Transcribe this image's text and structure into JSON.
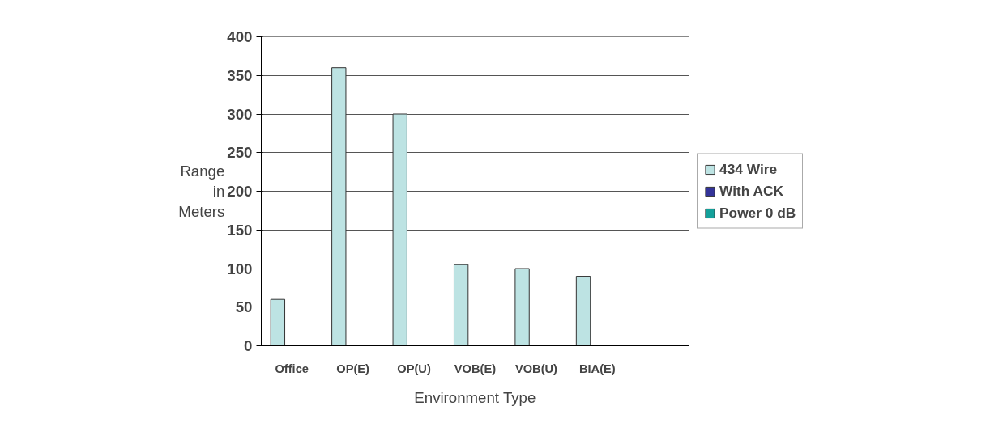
{
  "chart_data": {
    "type": "bar",
    "xlabel": "Environment Type",
    "ylabel": "Range in Meters",
    "categories": [
      "Office",
      "OP(E)",
      "OP(U)",
      "VOB(E)",
      "VOB(U)",
      "BIA(E)",
      null
    ],
    "series": [
      {
        "name": "434 Wire",
        "color": "#bde3e3",
        "values": [
          60,
          360,
          300,
          105,
          100,
          90,
          null
        ]
      },
      {
        "name": "With ACK",
        "color": "#333399",
        "values": [
          null,
          null,
          null,
          null,
          null,
          null,
          null
        ]
      },
      {
        "name": "Power 0 dB",
        "color": "#13a09a",
        "values": [
          null,
          null,
          null,
          null,
          null,
          null,
          null
        ]
      }
    ],
    "ylim": [
      0,
      400
    ],
    "yticks": [
      0,
      50,
      100,
      150,
      200,
      250,
      300,
      350,
      400
    ],
    "grid": "y",
    "legend": "right"
  }
}
